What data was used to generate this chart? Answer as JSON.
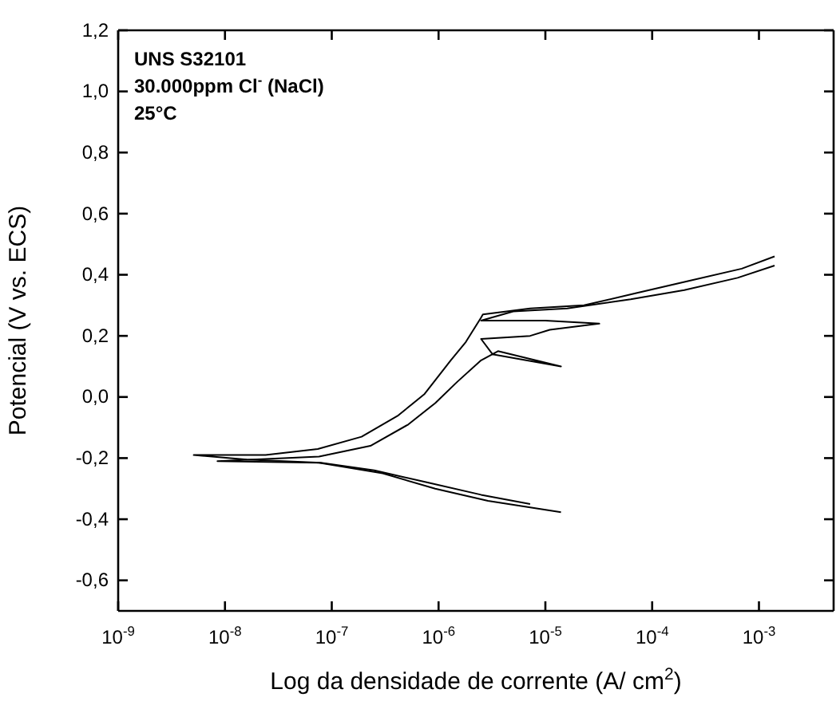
{
  "chart_data": {
    "type": "line",
    "xlabel": "Log da densidade de corrente (A/ cm$^{2}$)",
    "ylabel": "Potencial (V vs. ECS)",
    "annotations": [
      "UNS S32101",
      "30.000ppm Cl$^{-}$ (NaCl)",
      "25°C"
    ],
    "log": "x",
    "grid": false,
    "marker": "none",
    "line_style": "solid",
    "xlim": [
      1e-09,
      0.005
    ],
    "ylim": [
      -0.7,
      1.2
    ],
    "xticks": [
      {
        "value": 1e-09,
        "label": "10$^{-9}$"
      },
      {
        "value": 1e-08,
        "label": "10$^{-8}$"
      },
      {
        "value": 1e-07,
        "label": "10$^{-7}$"
      },
      {
        "value": 1e-06,
        "label": "10$^{-6}$"
      },
      {
        "value": 1e-05,
        "label": "10$^{-5}$"
      },
      {
        "value": 0.0001,
        "label": "10$^{-4}$"
      },
      {
        "value": 0.001,
        "label": "10$^{-3}$"
      }
    ],
    "yticks": [
      {
        "value": -0.6,
        "label": "-0,6"
      },
      {
        "value": -0.4,
        "label": "-0,4"
      },
      {
        "value": -0.2,
        "label": "-0,2"
      },
      {
        "value": 0,
        "label": "0,0"
      },
      {
        "value": 0.2,
        "label": "0,2"
      },
      {
        "value": 0.4,
        "label": "0,4"
      },
      {
        "value": 0.6,
        "label": "0,6"
      },
      {
        "value": 0.8,
        "label": "0,8"
      },
      {
        "value": 1.0,
        "label": "1,0"
      },
      {
        "value": 1.2,
        "label": "1,2"
      }
    ],
    "series": [
      {
        "color": "#000000",
        "x": [
          7.2e-06,
          2.5e-06,
          7.9e-07,
          2.5e-07,
          7.9e-08,
          1.6e-08,
          5.1e-09,
          2.4e-08,
          7.4e-08,
          1.9e-07,
          4.2e-07,
          7.4e-07,
          1.3e-06,
          1.8e-06,
          2.5e-06,
          2.6e-06,
          7.2e-06,
          2.3e-05,
          7.1e-05,
          0.00022,
          0.00069,
          0.0014
        ],
        "values": [
          -0.35,
          -0.32,
          -0.28,
          -0.24,
          -0.215,
          -0.205,
          -0.19,
          -0.19,
          -0.17,
          -0.13,
          -0.06,
          0.01,
          0.12,
          0.18,
          0.26,
          0.27,
          0.29,
          0.3,
          0.34,
          0.38,
          0.42,
          0.46
        ]
      },
      {
        "color": "#000000",
        "x": [
          1.4e-05,
          2.9e-06,
          9.3e-07,
          3e-07,
          7.6e-08,
          8.5e-09,
          7.6e-08,
          2.3e-07,
          5.2e-07,
          9.3e-07,
          1.5e-06,
          2.5e-06,
          3.6e-06,
          1.4e-05,
          3.2e-06,
          2.5e-06,
          7.2e-06,
          1.1e-05,
          3.2e-05,
          1e-05,
          2.5e-06,
          5e-06,
          1.6e-05,
          6.3e-05,
          0.0002,
          0.00063,
          0.0014
        ],
        "values": [
          -0.377,
          -0.34,
          -0.3,
          -0.25,
          -0.215,
          -0.21,
          -0.195,
          -0.16,
          -0.09,
          -0.02,
          0.05,
          0.12,
          0.15,
          0.1,
          0.14,
          0.19,
          0.2,
          0.22,
          0.24,
          0.25,
          0.25,
          0.28,
          0.29,
          0.32,
          0.35,
          0.39,
          0.43
        ]
      }
    ]
  }
}
